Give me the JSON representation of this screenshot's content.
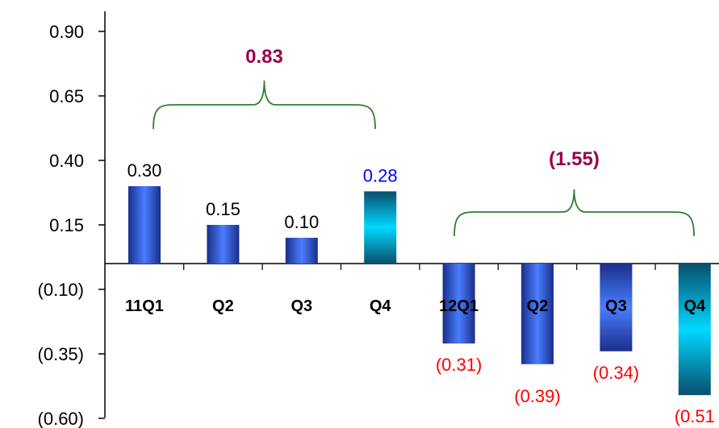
{
  "chart_data": {
    "type": "bar",
    "ylim": [
      -0.6,
      1.0
    ],
    "yticks": [
      0.9,
      0.65,
      0.4,
      0.15,
      -0.1,
      -0.35,
      -0.6
    ],
    "ytick_labels": [
      "0.90",
      "0.65",
      "0.40",
      "0.15",
      "(0.10)",
      "(0.35)",
      "(0.60)"
    ],
    "categories": [
      "11Q1",
      "Q2",
      "Q3",
      "Q4",
      "12Q1",
      "Q2",
      "Q3",
      "Q4"
    ],
    "values": [
      0.3,
      0.15,
      0.1,
      0.28,
      -0.31,
      -0.39,
      -0.34,
      -0.51
    ],
    "value_labels": [
      "0.30",
      "0.15",
      "0.10",
      "0.28",
      "(0.31)",
      "(0.39)",
      "(0.34)",
      "(0.51"
    ],
    "value_label_colors": [
      "#000000",
      "#000000",
      "#000000",
      "#0000ff",
      "#ff0000",
      "#ff0000",
      "#ff0000",
      "#ff0000"
    ],
    "bar_gradients": [
      "blue",
      "blue",
      "blue",
      "cyan",
      "blue",
      "blue",
      "blue",
      "cyan"
    ],
    "colors": {
      "blue_dark": "#1a2f8a",
      "blue_light": "#4a7dff",
      "cyan_dark": "#0a4f6e",
      "cyan_light": "#00d8ff",
      "brace": "#2e7d32",
      "brace_label": "#99004d"
    },
    "annotations": [
      {
        "label": "0.83",
        "bars": [
          0,
          3
        ]
      },
      {
        "label": "(1.55)",
        "bars": [
          4,
          7
        ]
      }
    ]
  }
}
